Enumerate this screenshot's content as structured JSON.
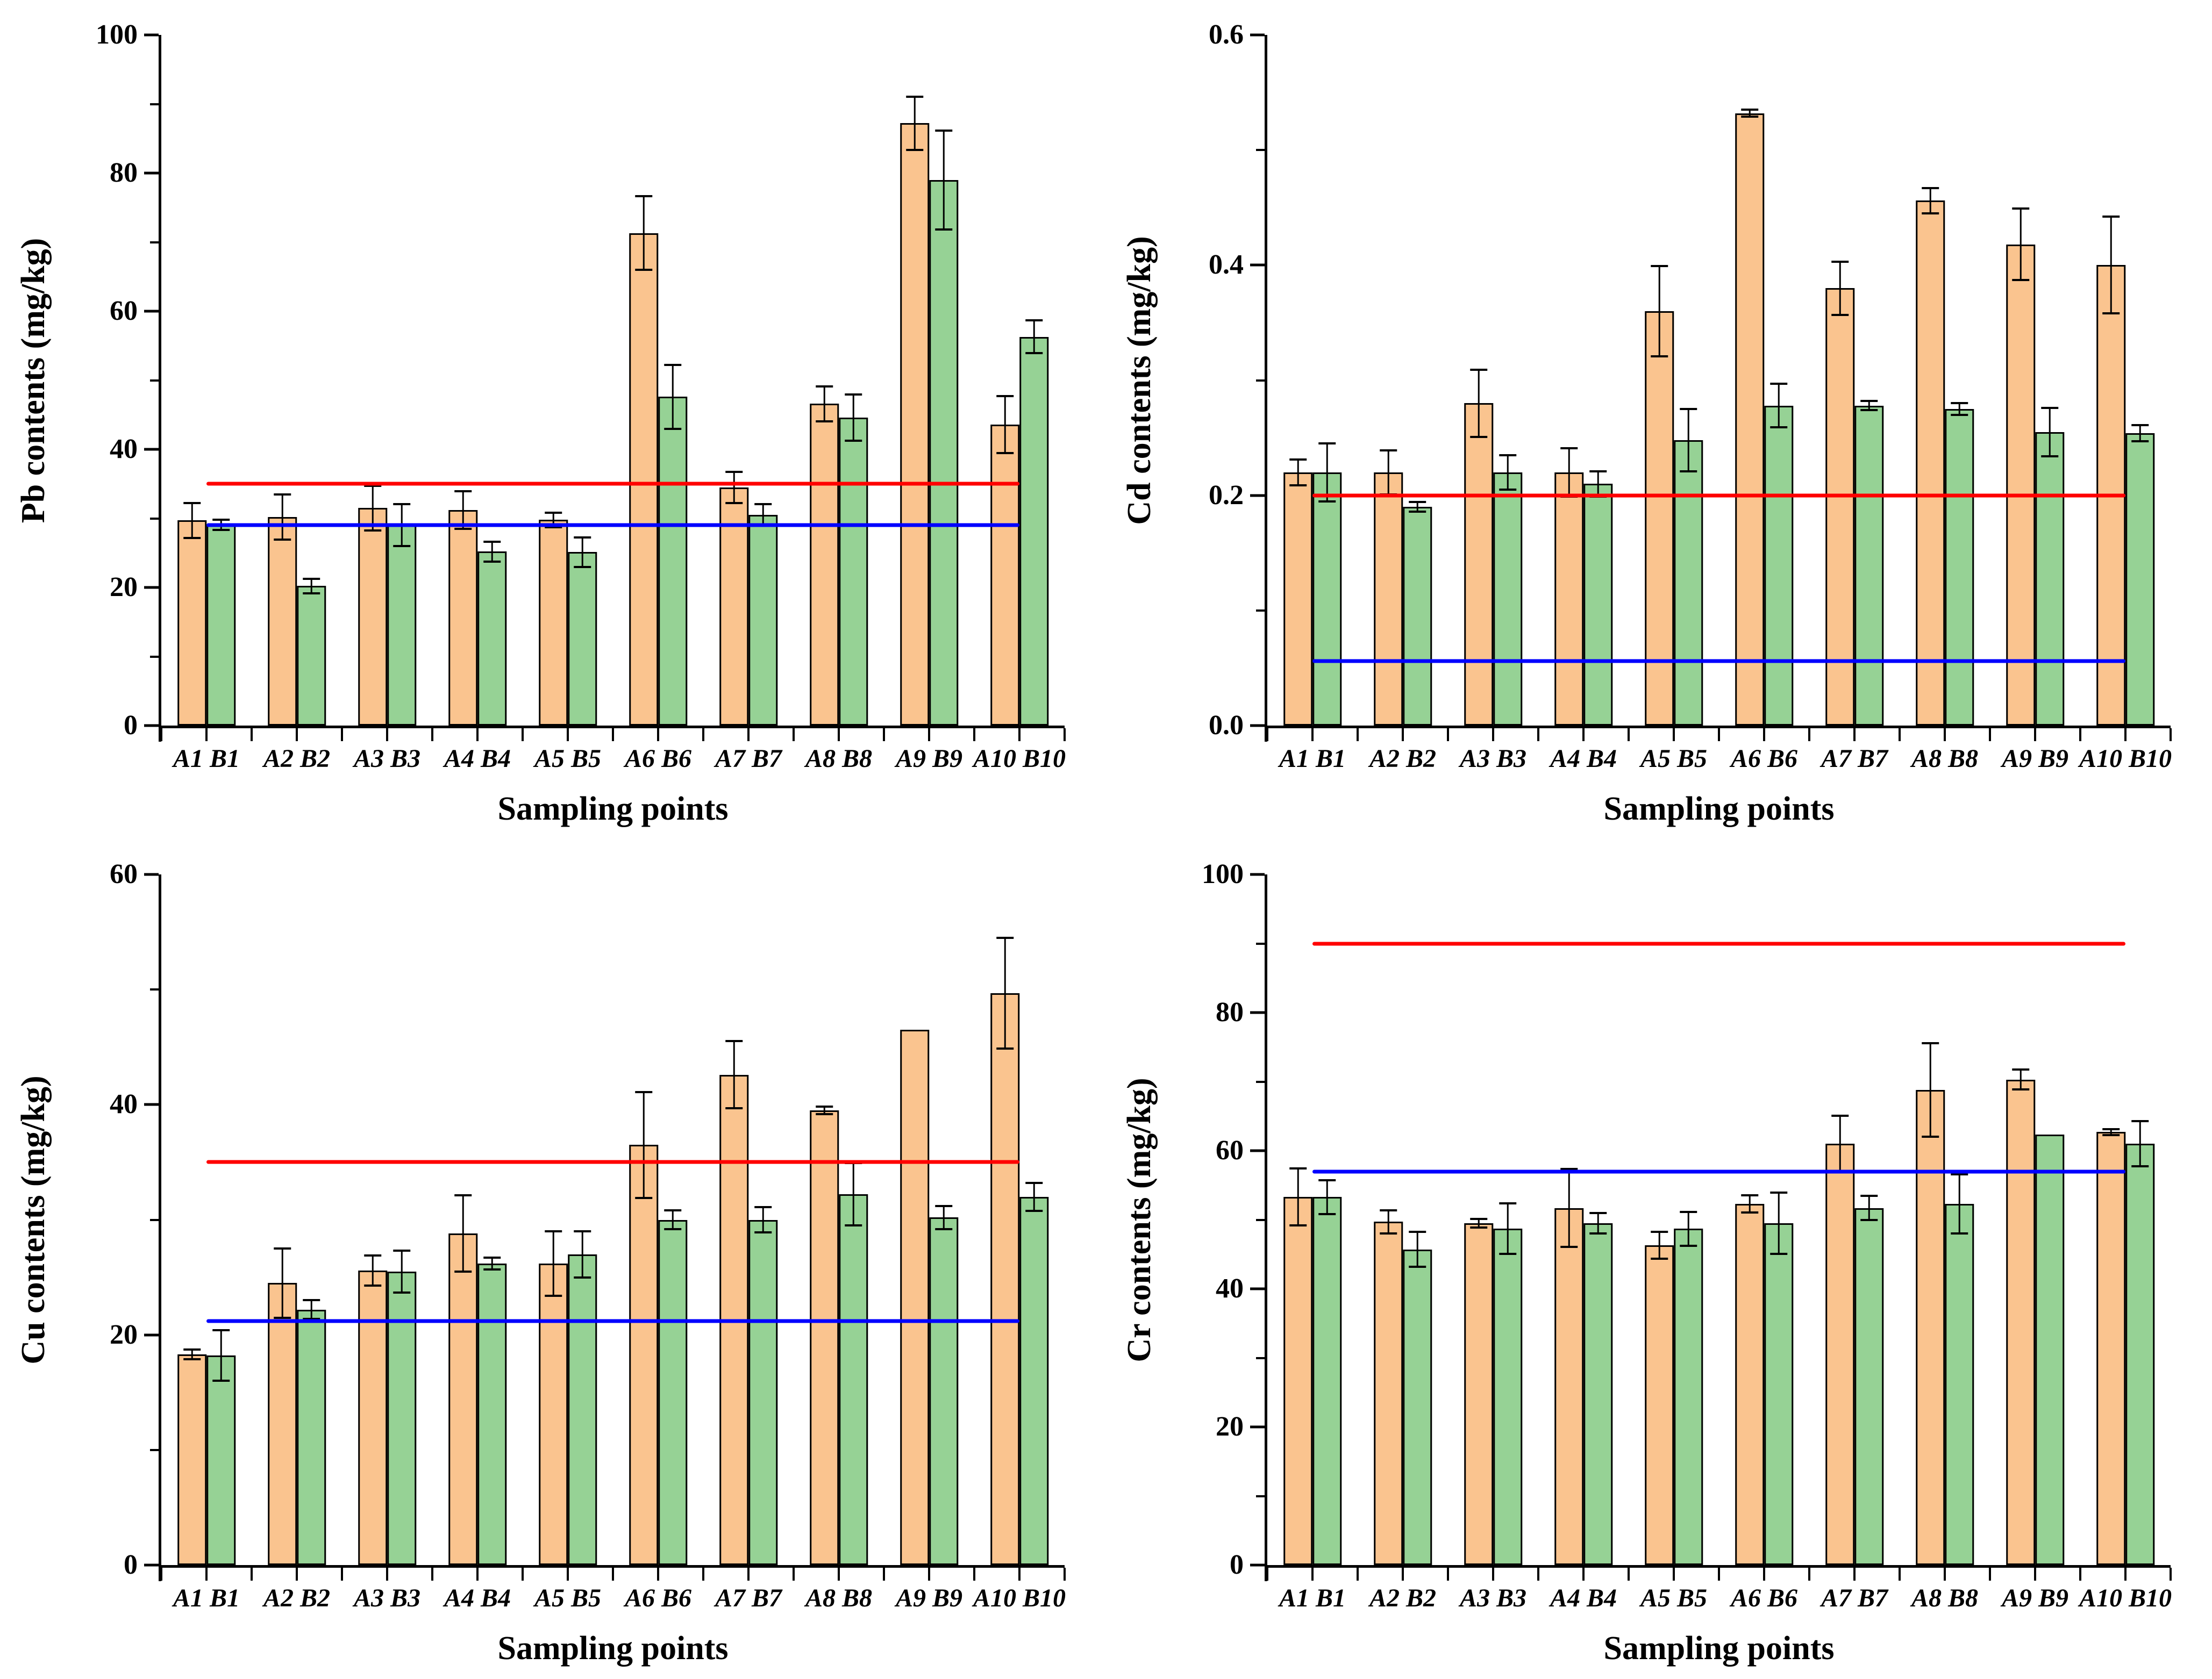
{
  "figure": {
    "background": "#FFFFFF",
    "panels": [
      "Pb",
      "Cd",
      "Cu",
      "Cr"
    ]
  },
  "colors": {
    "series_a_fill": "#FAC48F",
    "series_b_fill": "#96D295",
    "bar_border": "#000000",
    "error_bar": "#000000",
    "axis": "#000000",
    "red_reference": "#FF0000",
    "blue_reference": "#0000FF"
  },
  "chart_data": [
    {
      "id": "pb",
      "type": "bar",
      "title": "",
      "ylabel": "Pb contents (mg/kg)",
      "xlabel": "Sampling points",
      "ylim": [
        0,
        100
      ],
      "yticks": [
        0,
        20,
        40,
        60,
        80,
        100
      ],
      "ytick_labels": [
        "0",
        "20",
        "40",
        "60",
        "80",
        "100"
      ],
      "yticks_minor": [
        10,
        30,
        50,
        70,
        90
      ],
      "grid": false,
      "legend": "none",
      "categories": [
        "A1 B1",
        "A2 B2",
        "A3 B3",
        "A4 B4",
        "A5 B5",
        "A6 B6",
        "A7 B7",
        "A8 B8",
        "A9 B9",
        "A10 B10"
      ],
      "series": [
        {
          "name": "A",
          "color": "#FAC48F",
          "values": [
            29.7,
            30.2,
            31.5,
            31.2,
            29.8,
            71.3,
            34.5,
            46.6,
            87.2,
            43.6
          ],
          "errors": [
            2.7,
            3.4,
            3.4,
            2.9,
            1.2,
            5.5,
            2.4,
            2.7,
            4.0,
            4.3
          ]
        },
        {
          "name": "B",
          "color": "#96D295",
          "values": [
            29.1,
            20.2,
            29.0,
            25.2,
            25.1,
            47.6,
            30.5,
            44.6,
            79.0,
            56.3
          ],
          "errors": [
            0.9,
            1.2,
            3.2,
            1.6,
            2.3,
            4.8,
            1.7,
            3.5,
            7.3,
            2.5
          ]
        }
      ],
      "reference_lines": [
        {
          "label": "red-reference-line",
          "color": "#FF0000",
          "value": 35
        },
        {
          "label": "blue-reference-line",
          "color": "#0000FF",
          "value": 29
        }
      ]
    },
    {
      "id": "cd",
      "type": "bar",
      "title": "",
      "ylabel": "Cd contents (mg/kg)",
      "xlabel": "Sampling points",
      "ylim": [
        0,
        0.6
      ],
      "yticks": [
        0,
        0.2,
        0.4,
        0.6
      ],
      "ytick_labels": [
        "0.0",
        "0.2",
        "0.4",
        "0.6"
      ],
      "yticks_minor": [
        0.1,
        0.3,
        0.5
      ],
      "grid": false,
      "legend": "none",
      "categories": [
        "A1 B1",
        "A2 B2",
        "A3 B3",
        "A4 B4",
        "A5 B5",
        "A6 B6",
        "A7 B7",
        "A8 B8",
        "A9 B9",
        "A10 B10"
      ],
      "series": [
        {
          "name": "A",
          "color": "#FAC48F",
          "values": [
            0.22,
            0.22,
            0.28,
            0.22,
            0.36,
            0.532,
            0.38,
            0.456,
            0.418,
            0.4
          ],
          "errors": [
            0.012,
            0.02,
            0.03,
            0.022,
            0.04,
            0.004,
            0.024,
            0.012,
            0.032,
            0.043
          ]
        },
        {
          "name": "B",
          "color": "#96D295",
          "values": [
            0.22,
            0.19,
            0.22,
            0.21,
            0.248,
            0.278,
            0.278,
            0.275,
            0.255,
            0.254
          ],
          "errors": [
            0.026,
            0.005,
            0.016,
            0.012,
            0.028,
            0.02,
            0.005,
            0.006,
            0.022,
            0.008
          ]
        }
      ],
      "reference_lines": [
        {
          "label": "red-reference-line",
          "color": "#FF0000",
          "value": 0.2
        },
        {
          "label": "blue-reference-line",
          "color": "#0000FF",
          "value": 0.056
        }
      ]
    },
    {
      "id": "cu",
      "type": "bar",
      "title": "",
      "ylabel": "Cu contents (mg/kg)",
      "xlabel": "Sampling points",
      "ylim": [
        0,
        60
      ],
      "yticks": [
        0,
        20,
        40,
        60
      ],
      "ytick_labels": [
        "0",
        "20",
        "40",
        "60"
      ],
      "yticks_minor": [
        10,
        30,
        50
      ],
      "grid": false,
      "legend": "none",
      "categories": [
        "A1 B1",
        "A2 B2",
        "A3 B3",
        "A4 B4",
        "A5 B5",
        "A6 B6",
        "A7 B7",
        "A8 B8",
        "A9 B9",
        "A10 B10"
      ],
      "series": [
        {
          "name": "A",
          "color": "#FAC48F",
          "values": [
            18.3,
            24.5,
            25.6,
            28.8,
            26.2,
            36.5,
            42.6,
            39.5,
            46.5,
            49.7
          ],
          "errors": [
            0.5,
            3.1,
            1.4,
            3.4,
            2.9,
            4.7,
            3.0,
            0.4,
            0,
            4.9
          ]
        },
        {
          "name": "B",
          "color": "#96D295",
          "values": [
            18.2,
            22.2,
            25.5,
            26.2,
            27.0,
            30.0,
            30.0,
            32.2,
            30.2,
            32.0
          ],
          "errors": [
            2.3,
            0.9,
            1.9,
            0.6,
            2.1,
            0.9,
            1.2,
            2.8,
            1.1,
            1.3
          ]
        }
      ],
      "reference_lines": [
        {
          "label": "red-reference-line",
          "color": "#FF0000",
          "value": 35
        },
        {
          "label": "blue-reference-line",
          "color": "#0000FF",
          "value": 21.2
        }
      ]
    },
    {
      "id": "cr",
      "type": "bar",
      "title": "",
      "ylabel": "Cr contents (mg/kg)",
      "xlabel": "Sampling points",
      "ylim": [
        0,
        100
      ],
      "yticks": [
        0,
        20,
        40,
        60,
        80,
        100
      ],
      "ytick_labels": [
        "0",
        "20",
        "40",
        "60",
        "80",
        "100"
      ],
      "yticks_minor": [
        10,
        30,
        50,
        70,
        90
      ],
      "grid": false,
      "legend": "none",
      "categories": [
        "A1 B1",
        "A2 B2",
        "A3 B3",
        "A4 B4",
        "A5 B5",
        "A6 B6",
        "A7 B7",
        "A8 B8",
        "A9 B9",
        "A10 B10"
      ],
      "series": [
        {
          "name": "A",
          "color": "#FAC48F",
          "values": [
            53.3,
            49.7,
            49.5,
            51.7,
            46.3,
            52.3,
            61.0,
            68.8,
            70.3,
            62.7
          ],
          "errors": [
            4.3,
            1.8,
            0.8,
            5.8,
            2.1,
            1.4,
            4.2,
            6.9,
            1.6,
            0.6
          ]
        },
        {
          "name": "B",
          "color": "#96D295",
          "values": [
            53.3,
            45.7,
            48.7,
            49.5,
            48.7,
            49.5,
            51.7,
            52.3,
            62.3,
            61.0
          ],
          "errors": [
            2.6,
            2.7,
            3.8,
            1.6,
            2.6,
            4.6,
            1.9,
            4.4,
            0,
            3.4
          ]
        }
      ],
      "reference_lines": [
        {
          "label": "red-reference-line",
          "color": "#FF0000",
          "value": 90
        },
        {
          "label": "blue-reference-line",
          "color": "#0000FF",
          "value": 57
        }
      ]
    }
  ]
}
